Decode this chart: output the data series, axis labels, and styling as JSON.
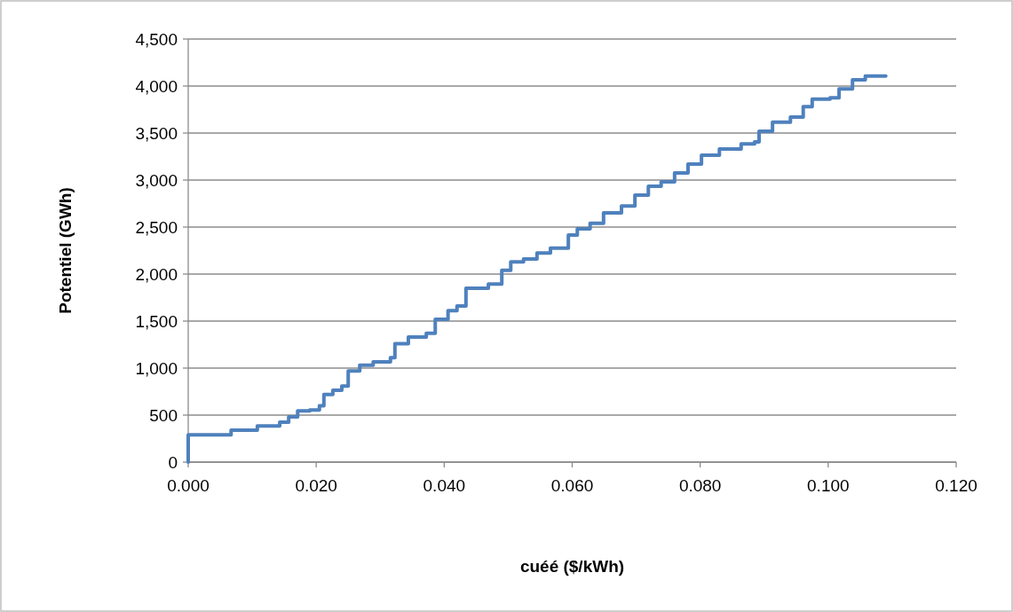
{
  "chart_data": {
    "type": "step",
    "xlabel": "cuéé ($/kWh)",
    "ylabel": "Potentiel (GWh)",
    "x": [
      0,
      0,
      0.0025,
      0.0067,
      0.0108,
      0.0143,
      0.0157,
      0.0171,
      0.019,
      0.0205,
      0.0212,
      0.0226,
      0.024,
      0.025,
      0.0268,
      0.0289,
      0.0316,
      0.0323,
      0.0344,
      0.0372,
      0.0386,
      0.0406,
      0.042,
      0.0434,
      0.0469,
      0.049,
      0.0504,
      0.0524,
      0.0545,
      0.0566,
      0.0594,
      0.0608,
      0.0628,
      0.0649,
      0.0677,
      0.0698,
      0.0719,
      0.0739,
      0.076,
      0.0781,
      0.0802,
      0.083,
      0.0864,
      0.0885,
      0.0892,
      0.0913,
      0.0941,
      0.0961,
      0.0975,
      0.1003,
      0.1017,
      0.1038,
      0.1058,
      0.109
    ],
    "series": [
      {
        "color": "#4f81bd",
        "values": [
          0,
          290,
          290,
          340,
          385,
          425,
          480,
          545,
          555,
          600,
          720,
          765,
          810,
          970,
          1030,
          1065,
          1110,
          1260,
          1330,
          1370,
          1520,
          1610,
          1660,
          1850,
          1895,
          2040,
          2130,
          2160,
          2225,
          2275,
          2415,
          2480,
          2540,
          2650,
          2725,
          2840,
          2935,
          2980,
          3075,
          3170,
          3265,
          3330,
          3385,
          3405,
          3520,
          3615,
          3670,
          3780,
          3860,
          3875,
          3970,
          4065,
          4105,
          4105
        ]
      }
    ],
    "xlim": [
      0,
      0.12
    ],
    "xticks": [
      {
        "value": 0,
        "label": "0.000"
      },
      {
        "value": 0.02,
        "label": "0.020"
      },
      {
        "value": 0.04,
        "label": "0.040"
      },
      {
        "value": 0.06,
        "label": "0.060"
      },
      {
        "value": 0.08,
        "label": "0.080"
      },
      {
        "value": 0.1,
        "label": "0.100"
      },
      {
        "value": 0.12,
        "label": "0.120"
      }
    ],
    "ylim": [
      0,
      4500
    ],
    "yticks": [
      0,
      {
        "value": 500,
        "label": "500"
      },
      {
        "value": 1000,
        "label": "1,000"
      },
      {
        "value": 1500,
        "label": "1,500"
      },
      {
        "value": 2000,
        "label": "2,000"
      },
      {
        "value": 2500,
        "label": "2,500"
      },
      {
        "value": 3000,
        "label": "3,000"
      },
      {
        "value": 3500,
        "label": "3,500"
      },
      {
        "value": 4000,
        "label": "4,000"
      },
      {
        "value": 4500,
        "label": "4,500"
      }
    ],
    "grid": "y",
    "line_style": "solid"
  }
}
